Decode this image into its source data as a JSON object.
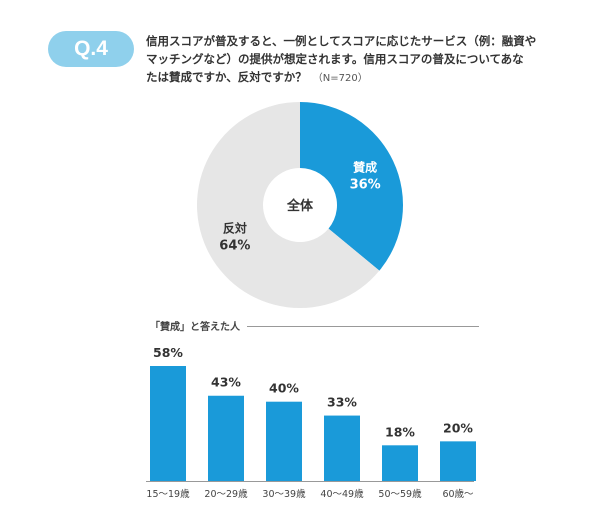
{
  "badge": "Q.4",
  "question": {
    "line1": "信用スコアが普及すると、一例としてスコアに応じたサービス（例：融資や",
    "line2": "マッチングなど）の提供が想定されます。信用スコアの普及についてあな",
    "line3": "たは賛成ですか、反対ですか？",
    "sample": "（N=720）"
  },
  "section_label": "「賛成」と答えた人",
  "colors": {
    "accent": "#1a9ad9",
    "grey": "#e6e6e6",
    "badge": "#8fd0ec"
  },
  "chart_data": [
    {
      "type": "pie",
      "center_label": "全体",
      "slices": [
        {
          "name": "賛成",
          "label": "36%",
          "value": 36
        },
        {
          "name": "反対",
          "label": "64%",
          "value": 64
        }
      ]
    },
    {
      "type": "bar",
      "title": "「賛成」と答えた人",
      "categories": [
        "15〜19歳",
        "20〜29歳",
        "30〜39歳",
        "40〜49歳",
        "50〜59歳",
        "60歳〜"
      ],
      "values": [
        58,
        43,
        40,
        33,
        18,
        20
      ],
      "value_labels": [
        "58%",
        "43%",
        "40%",
        "33%",
        "18%",
        "20%"
      ]
    }
  ]
}
